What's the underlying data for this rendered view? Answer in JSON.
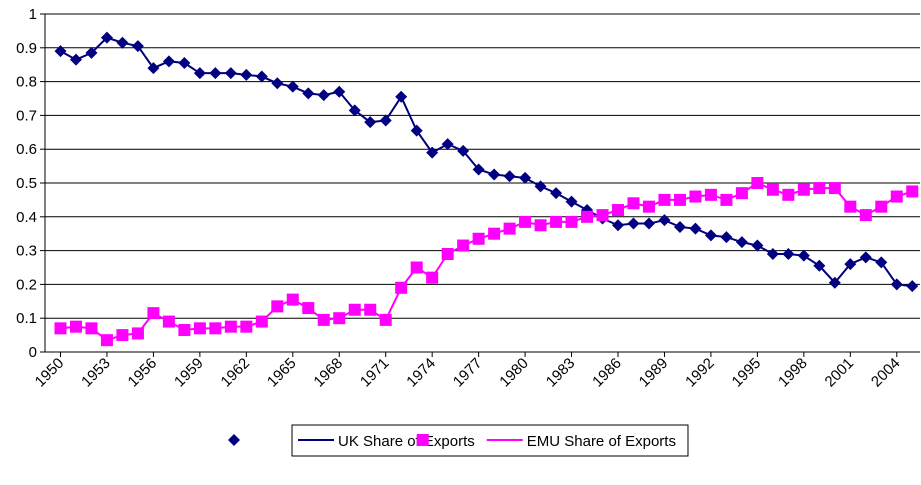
{
  "chart_data": {
    "type": "line",
    "x": [
      1950,
      1951,
      1952,
      1953,
      1954,
      1955,
      1956,
      1957,
      1958,
      1959,
      1960,
      1961,
      1962,
      1963,
      1964,
      1965,
      1966,
      1967,
      1968,
      1969,
      1970,
      1971,
      1972,
      1973,
      1974,
      1975,
      1976,
      1977,
      1978,
      1979,
      1980,
      1981,
      1982,
      1983,
      1984,
      1985,
      1986,
      1987,
      1988,
      1989,
      1990,
      1991,
      1992,
      1993,
      1994,
      1995,
      1996,
      1997,
      1998,
      1999,
      2000,
      2001,
      2002,
      2003,
      2004,
      2005
    ],
    "series": [
      {
        "name": "UK Share of Exports",
        "color": "#000080",
        "marker": "diamond",
        "values": [
          0.89,
          0.865,
          0.885,
          0.93,
          0.915,
          0.905,
          0.84,
          0.86,
          0.855,
          0.825,
          0.825,
          0.825,
          0.82,
          0.815,
          0.795,
          0.785,
          0.765,
          0.76,
          0.77,
          0.715,
          0.68,
          0.685,
          0.755,
          0.655,
          0.59,
          0.615,
          0.595,
          0.54,
          0.525,
          0.52,
          0.515,
          0.49,
          0.47,
          0.445,
          0.42,
          0.395,
          0.375,
          0.38,
          0.38,
          0.39,
          0.37,
          0.365,
          0.345,
          0.34,
          0.325,
          0.315,
          0.29,
          0.29,
          0.285,
          0.255,
          0.205,
          0.26,
          0.28,
          0.265,
          0.2,
          0.195
        ]
      },
      {
        "name": "EMU Share of Exports",
        "color": "#ff00ff",
        "marker": "square",
        "values": [
          0.07,
          0.075,
          0.07,
          0.035,
          0.05,
          0.055,
          0.115,
          0.09,
          0.065,
          0.07,
          0.07,
          0.075,
          0.075,
          0.09,
          0.135,
          0.155,
          0.13,
          0.095,
          0.1,
          0.125,
          0.125,
          0.095,
          0.19,
          0.25,
          0.22,
          0.29,
          0.315,
          0.335,
          0.35,
          0.365,
          0.385,
          0.375,
          0.385,
          0.385,
          0.4,
          0.405,
          0.42,
          0.44,
          0.43,
          0.45,
          0.45,
          0.46,
          0.465,
          0.45,
          0.47,
          0.5,
          0.48,
          0.465,
          0.48,
          0.485,
          0.485,
          0.43,
          0.405,
          0.43,
          0.46,
          0.475
        ]
      }
    ],
    "xlim": [
      1949,
      2005.5
    ],
    "xticks": [
      1950,
      1953,
      1956,
      1959,
      1962,
      1965,
      1968,
      1971,
      1974,
      1977,
      1980,
      1983,
      1986,
      1989,
      1992,
      1995,
      1998,
      2001,
      2004
    ],
    "ylim": [
      0,
      1
    ],
    "yticks": [
      0,
      0.1,
      0.2,
      0.3,
      0.4,
      0.5,
      0.6,
      0.7,
      0.8,
      0.9,
      1
    ],
    "grid": true,
    "legend": "bottom"
  }
}
